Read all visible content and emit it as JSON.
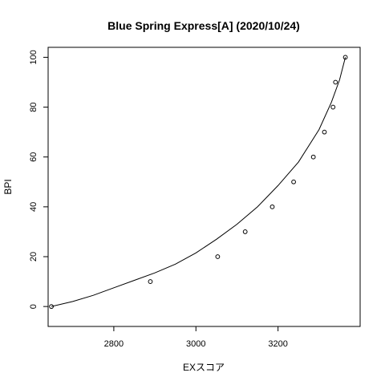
{
  "chart_data": {
    "type": "scatter",
    "title": "Blue Spring Express[A] (2020/10/24)",
    "xlabel": "EXスコア",
    "ylabel": "BPI",
    "xlim": [
      2640,
      3400
    ],
    "ylim": [
      -8,
      104
    ],
    "x_ticks": [
      2800,
      3000,
      3200
    ],
    "y_ticks": [
      0,
      20,
      40,
      60,
      80,
      100
    ],
    "grid": false,
    "legend": "none",
    "points": [
      {
        "x": 2648,
        "y": 0
      },
      {
        "x": 2889,
        "y": 10
      },
      {
        "x": 3053,
        "y": 20
      },
      {
        "x": 3120,
        "y": 30
      },
      {
        "x": 3186,
        "y": 40
      },
      {
        "x": 3238,
        "y": 50
      },
      {
        "x": 3286,
        "y": 60
      },
      {
        "x": 3313,
        "y": 70
      },
      {
        "x": 3334,
        "y": 80
      },
      {
        "x": 3340,
        "y": 90
      },
      {
        "x": 3364,
        "y": 100
      }
    ],
    "curve": [
      {
        "x": 2648,
        "y": 0
      },
      {
        "x": 2700,
        "y": 2
      },
      {
        "x": 2750,
        "y": 4.5
      },
      {
        "x": 2800,
        "y": 7.5
      },
      {
        "x": 2850,
        "y": 10.5
      },
      {
        "x": 2900,
        "y": 13.5
      },
      {
        "x": 2950,
        "y": 17
      },
      {
        "x": 3000,
        "y": 21.5
      },
      {
        "x": 3050,
        "y": 27
      },
      {
        "x": 3100,
        "y": 33
      },
      {
        "x": 3150,
        "y": 40
      },
      {
        "x": 3200,
        "y": 48.5
      },
      {
        "x": 3250,
        "y": 58
      },
      {
        "x": 3300,
        "y": 71
      },
      {
        "x": 3330,
        "y": 82
      },
      {
        "x": 3350,
        "y": 91
      },
      {
        "x": 3364,
        "y": 100
      }
    ]
  }
}
